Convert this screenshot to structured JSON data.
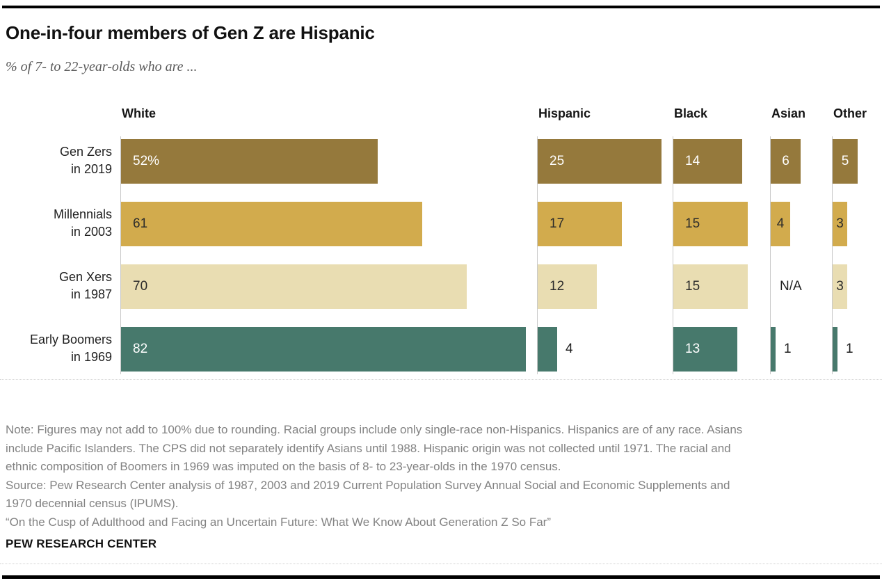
{
  "header": {
    "title": "One-in-four members of Gen Z are Hispanic",
    "subtitle": "% of 7- to 22-year-olds who are ..."
  },
  "chart_data": {
    "type": "bar",
    "orientation": "horizontal",
    "unit": "%",
    "title": "One-in-four members of Gen Z are Hispanic",
    "groups": [
      "White",
      "Hispanic",
      "Black",
      "Asian",
      "Other"
    ],
    "categories": [
      "Gen Zers in 2019",
      "Millennials in 2003",
      "Gen Xers in 1987",
      "Early Boomers in 1969"
    ],
    "category_lines": [
      [
        "Gen Zers",
        "in 2019"
      ],
      [
        "Millennials",
        "in 2003"
      ],
      [
        "Gen Xers",
        "in 1987"
      ],
      [
        "Early Boomers",
        "in 1969"
      ]
    ],
    "series": [
      {
        "category": "Gen Zers in 2019",
        "values": [
          52,
          25,
          14,
          6,
          5
        ],
        "display": [
          "52%",
          "25",
          "14",
          "6",
          "5"
        ]
      },
      {
        "category": "Millennials in 2003",
        "values": [
          61,
          17,
          15,
          4,
          3
        ],
        "display": [
          "61",
          "17",
          "15",
          "4",
          "3"
        ]
      },
      {
        "category": "Gen Xers in 1987",
        "values": [
          70,
          12,
          15,
          null,
          3
        ],
        "display": [
          "70",
          "12",
          "15",
          "N/A",
          "3"
        ]
      },
      {
        "category": "Early Boomers in 1969",
        "values": [
          82,
          4,
          13,
          1,
          1
        ],
        "display": [
          "82",
          "4",
          "13",
          "1",
          "1"
        ]
      }
    ],
    "row_colors": [
      "#95793C",
      "#D2AB4D",
      "#E9DDB2",
      "#47796C"
    ],
    "row_label_colors": [
      "#ffffff",
      "#2b2b2b",
      "#2b2b2b",
      "#ffffff"
    ],
    "outside_label_color": "#1f1f1f",
    "na_text": "N/A",
    "value_range": [
      0,
      100
    ],
    "grid": false,
    "legend": false
  },
  "notes": {
    "lines": [
      "Note: Figures may not add to 100% due to rounding. Racial groups include only single-race non-Hispanics. Hispanics are of any race. Asians",
      "include Pacific Islanders. The CPS did not separately identify Asians until 1988. Hispanic origin was not collected until 1971. The racial and",
      "ethnic composition of Boomers in 1969 was imputed on the basis of 8- to 23-year-olds in the 1970 census.",
      "Source: Pew Research Center analysis of 1987, 2003 and 2019 Current Population Survey Annual Social and Economic Supplements and",
      "1970 decennial census (IPUMS).",
      "“On the Cusp of Adulthood and Facing an Uncertain Future: What We Know About Generation Z So Far”"
    ]
  },
  "footer": {
    "brand": "PEW RESEARCH CENTER"
  }
}
